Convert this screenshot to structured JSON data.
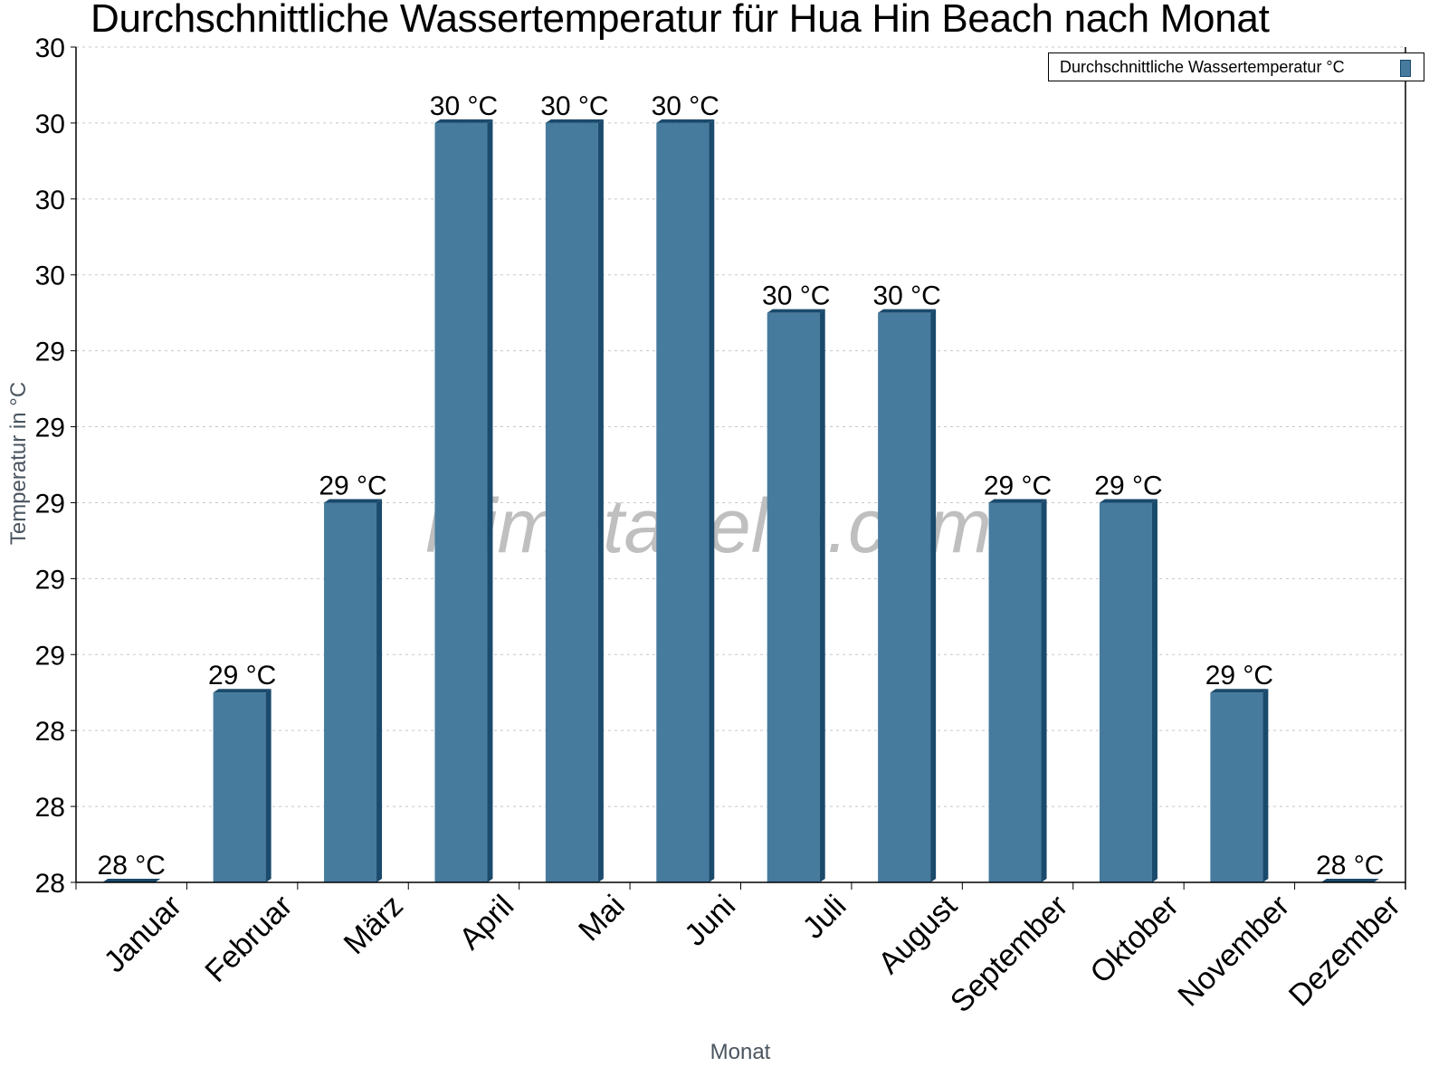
{
  "chart_data": {
    "type": "bar",
    "title": "Durchschnittliche Wassertemperatur für Hua Hin Beach nach Monat",
    "xlabel": "Monat",
    "ylabel": "Temperatur in °C",
    "categories": [
      "Januar",
      "Februar",
      "März",
      "April",
      "Mai",
      "Juni",
      "Juli",
      "August",
      "September",
      "Oktober",
      "November",
      "Dezember"
    ],
    "series": [
      {
        "name": "Durchschnittliche Wassertemperatur °C",
        "values": [
          28.0,
          28.5,
          29.0,
          30.0,
          30.0,
          30.0,
          29.5,
          29.5,
          29.0,
          29.0,
          28.5,
          28.0
        ],
        "data_labels": [
          "28 °C",
          "29 °C",
          "29 °C",
          "30 °C",
          "30 °C",
          "30 °C",
          "30 °C",
          "30 °C",
          "29 °C",
          "29 °C",
          "29 °C",
          "28 °C"
        ],
        "color": "#467b9e",
        "edge_color": "#1a4a6c"
      }
    ],
    "ylim": [
      28.0,
      30.2
    ],
    "yticks": [
      28.0,
      28.2,
      28.4,
      28.6,
      28.8,
      29.0,
      29.2,
      29.4,
      29.6,
      29.8,
      30.0,
      30.2
    ],
    "ytick_labels": [
      "28",
      "28",
      "28",
      "29",
      "29",
      "29",
      "29",
      "29",
      "30",
      "30",
      "30",
      "30"
    ],
    "grid": true,
    "legend_position": "top-right",
    "watermark": "klimatabelle.com"
  },
  "colors": {
    "bar": "#467b9e",
    "bar_side": "#1a4a6c",
    "grid": "#c8c8c8",
    "axis_label": "#4a5560",
    "watermark": "#b4b4b4"
  }
}
